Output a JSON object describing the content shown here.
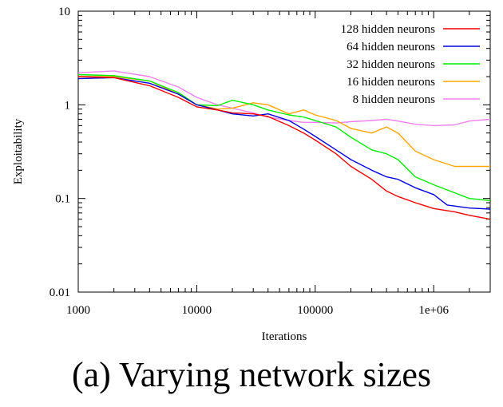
{
  "chart_data": {
    "type": "line",
    "x_scale": "log",
    "y_scale": "log",
    "xlim": [
      1000,
      3000000
    ],
    "ylim": [
      0.01,
      10
    ],
    "xlabel": "Iterations",
    "ylabel": "Exploitability",
    "x_ticks": [
      {
        "value": 1000,
        "label": "1000"
      },
      {
        "value": 10000,
        "label": "10000"
      },
      {
        "value": 100000,
        "label": "100000"
      },
      {
        "value": 1000000,
        "label": "1e+06"
      }
    ],
    "y_ticks": [
      {
        "value": 0.01,
        "label": "0.01"
      },
      {
        "value": 0.1,
        "label": "0.1"
      },
      {
        "value": 1,
        "label": "1"
      },
      {
        "value": 10,
        "label": "10"
      }
    ],
    "legend_position": "top-right",
    "series": [
      {
        "name": "128 hidden neurons",
        "color": "#ee0000",
        "points": [
          [
            1000,
            2.0
          ],
          [
            2000,
            1.95
          ],
          [
            4000,
            1.6
          ],
          [
            7000,
            1.2
          ],
          [
            10000,
            0.95
          ],
          [
            15000,
            0.88
          ],
          [
            20000,
            0.82
          ],
          [
            30000,
            0.8
          ],
          [
            40000,
            0.75
          ],
          [
            60000,
            0.6
          ],
          [
            80000,
            0.5
          ],
          [
            100000,
            0.42
          ],
          [
            150000,
            0.3
          ],
          [
            200000,
            0.22
          ],
          [
            300000,
            0.16
          ],
          [
            400000,
            0.12
          ],
          [
            500000,
            0.105
          ],
          [
            700000,
            0.09
          ],
          [
            1000000,
            0.078
          ],
          [
            1500000,
            0.072
          ],
          [
            2000000,
            0.066
          ],
          [
            3000000,
            0.06
          ]
        ]
      },
      {
        "name": "64 hidden neurons",
        "color": "#0000dd",
        "points": [
          [
            1000,
            1.9
          ],
          [
            2000,
            1.95
          ],
          [
            4000,
            1.7
          ],
          [
            7000,
            1.3
          ],
          [
            10000,
            1.0
          ],
          [
            15000,
            0.88
          ],
          [
            20000,
            0.8
          ],
          [
            30000,
            0.76
          ],
          [
            40000,
            0.8
          ],
          [
            60000,
            0.68
          ],
          [
            80000,
            0.55
          ],
          [
            100000,
            0.46
          ],
          [
            150000,
            0.33
          ],
          [
            200000,
            0.26
          ],
          [
            300000,
            0.2
          ],
          [
            400000,
            0.17
          ],
          [
            500000,
            0.16
          ],
          [
            700000,
            0.13
          ],
          [
            1000000,
            0.11
          ],
          [
            1300000,
            0.085
          ],
          [
            2000000,
            0.079
          ],
          [
            3000000,
            0.077
          ]
        ]
      },
      {
        "name": "32 hidden neurons",
        "color": "#00ee00",
        "points": [
          [
            1000,
            2.1
          ],
          [
            2000,
            2.05
          ],
          [
            4000,
            1.8
          ],
          [
            7000,
            1.35
          ],
          [
            10000,
            1.0
          ],
          [
            15000,
            0.98
          ],
          [
            20000,
            1.12
          ],
          [
            30000,
            1.0
          ],
          [
            40000,
            0.88
          ],
          [
            60000,
            0.78
          ],
          [
            80000,
            0.74
          ],
          [
            100000,
            0.68
          ],
          [
            150000,
            0.58
          ],
          [
            200000,
            0.45
          ],
          [
            300000,
            0.33
          ],
          [
            400000,
            0.3
          ],
          [
            500000,
            0.26
          ],
          [
            700000,
            0.17
          ],
          [
            1000000,
            0.14
          ],
          [
            1500000,
            0.115
          ],
          [
            2000000,
            0.1
          ],
          [
            3000000,
            0.095
          ]
        ]
      },
      {
        "name": "16 hidden neurons",
        "color": "#ffa500",
        "points": [
          [
            1000,
            2.0
          ],
          [
            2000,
            2.0
          ],
          [
            4000,
            1.8
          ],
          [
            7000,
            1.3
          ],
          [
            10000,
            1.0
          ],
          [
            15000,
            0.9
          ],
          [
            20000,
            0.92
          ],
          [
            30000,
            1.05
          ],
          [
            40000,
            1.0
          ],
          [
            60000,
            0.8
          ],
          [
            80000,
            0.88
          ],
          [
            100000,
            0.78
          ],
          [
            150000,
            0.68
          ],
          [
            200000,
            0.56
          ],
          [
            300000,
            0.5
          ],
          [
            400000,
            0.58
          ],
          [
            500000,
            0.5
          ],
          [
            700000,
            0.32
          ],
          [
            1000000,
            0.26
          ],
          [
            1500000,
            0.22
          ],
          [
            2000000,
            0.22
          ],
          [
            3000000,
            0.22
          ]
        ]
      },
      {
        "name": "8 hidden neurons",
        "color": "#ee82ee",
        "points": [
          [
            1000,
            2.2
          ],
          [
            2000,
            2.3
          ],
          [
            4000,
            2.0
          ],
          [
            7000,
            1.55
          ],
          [
            10000,
            1.2
          ],
          [
            15000,
            1.0
          ],
          [
            20000,
            0.92
          ],
          [
            30000,
            0.82
          ],
          [
            40000,
            0.74
          ],
          [
            60000,
            0.68
          ],
          [
            80000,
            0.65
          ],
          [
            100000,
            0.65
          ],
          [
            150000,
            0.64
          ],
          [
            200000,
            0.66
          ],
          [
            300000,
            0.68
          ],
          [
            400000,
            0.7
          ],
          [
            500000,
            0.67
          ],
          [
            700000,
            0.62
          ],
          [
            1000000,
            0.6
          ],
          [
            1500000,
            0.61
          ],
          [
            2000000,
            0.67
          ],
          [
            3000000,
            0.7
          ]
        ]
      }
    ]
  },
  "caption": "(a) Varying network sizes"
}
